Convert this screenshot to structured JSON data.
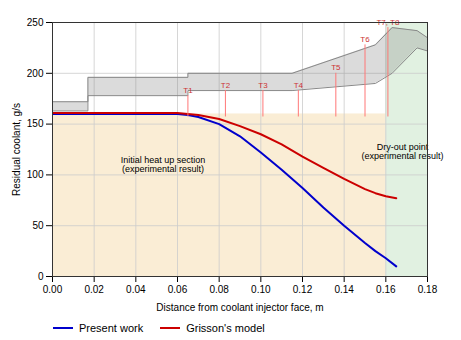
{
  "chart_data": {
    "type": "line",
    "xlabel": "Distance from coolant injector face, m",
    "ylabel": "Residual coolant, g/s",
    "xlim": [
      0.0,
      0.18
    ],
    "ylim": [
      0,
      250
    ],
    "xticks": [
      {
        "value": 0.0,
        "label": "0.00"
      },
      {
        "value": 0.02,
        "label": "0.02"
      },
      {
        "value": 0.04,
        "label": "0.04"
      },
      {
        "value": 0.06,
        "label": "0.06"
      },
      {
        "value": 0.08,
        "label": "0.08"
      },
      {
        "value": 0.1,
        "label": "0.10"
      },
      {
        "value": 0.12,
        "label": "0.12"
      },
      {
        "value": 0.14,
        "label": "0.14"
      },
      {
        "value": 0.16,
        "label": "0.16"
      },
      {
        "value": 0.18,
        "label": "0.18"
      }
    ],
    "yticks": [
      0,
      50,
      100,
      150,
      200,
      250
    ],
    "grid": true,
    "legend": "lower left",
    "x": [
      0.0,
      0.01,
      0.02,
      0.03,
      0.04,
      0.05,
      0.06,
      0.065,
      0.07,
      0.08,
      0.09,
      0.1,
      0.11,
      0.12,
      0.13,
      0.14,
      0.15,
      0.155,
      0.16,
      0.165
    ],
    "series": [
      {
        "name": "Present work",
        "color": "#0000cc",
        "values": [
          160,
          160,
          160,
          160,
          160,
          160,
          160,
          159,
          157,
          150,
          138,
          122,
          105,
          87,
          68,
          50,
          33,
          25,
          18,
          10
        ]
      },
      {
        "name": "Grisson's model",
        "color": "#cc0000",
        "values": [
          161,
          161,
          161,
          161,
          161,
          161,
          161,
          160,
          159,
          155,
          148,
          140,
          130,
          118,
          107,
          96,
          86,
          82,
          79,
          77
        ]
      }
    ],
    "shading": [
      {
        "x": [
          0.0,
          0.16
        ],
        "y": [
          0,
          160
        ],
        "color": "#f5deb3"
      },
      {
        "x": [
          0.16,
          0.18
        ],
        "y": [
          0,
          250
        ],
        "color": "#c8e6c9"
      }
    ],
    "band": {
      "color": "#888888",
      "lower_x": [
        0.0,
        0.017,
        0.017,
        0.065,
        0.065,
        0.115,
        0.115,
        0.155,
        0.163,
        0.175,
        0.18
      ],
      "lower": [
        163,
        163,
        178,
        178,
        183,
        183,
        183,
        190,
        200,
        225,
        222
      ],
      "upper_x": [
        0.0,
        0.017,
        0.017,
        0.065,
        0.065,
        0.115,
        0.115,
        0.155,
        0.163,
        0.175,
        0.18
      ],
      "upper": [
        172,
        172,
        196,
        196,
        200,
        200,
        200,
        228,
        245,
        242,
        235
      ]
    },
    "thermocouples": {
      "color": "#ff7777",
      "label_color": "#cc3333",
      "x": [
        0.065,
        0.083,
        0.101,
        0.118,
        0.136,
        0.15,
        0.161
      ],
      "labels": [
        "T1",
        "T2",
        "T3",
        "T4",
        "T5",
        "T6",
        "T7, T8"
      ],
      "y_bottom": 157,
      "y_top": [
        178,
        183,
        183,
        183,
        200,
        228,
        245
      ]
    },
    "annotations": [
      {
        "text": "Initial heat up section\n(experimental result)",
        "x": 0.053,
        "y": 110
      },
      {
        "text": "Dry-out point\n(experimental result)",
        "x": 0.168,
        "y": 123
      }
    ]
  }
}
